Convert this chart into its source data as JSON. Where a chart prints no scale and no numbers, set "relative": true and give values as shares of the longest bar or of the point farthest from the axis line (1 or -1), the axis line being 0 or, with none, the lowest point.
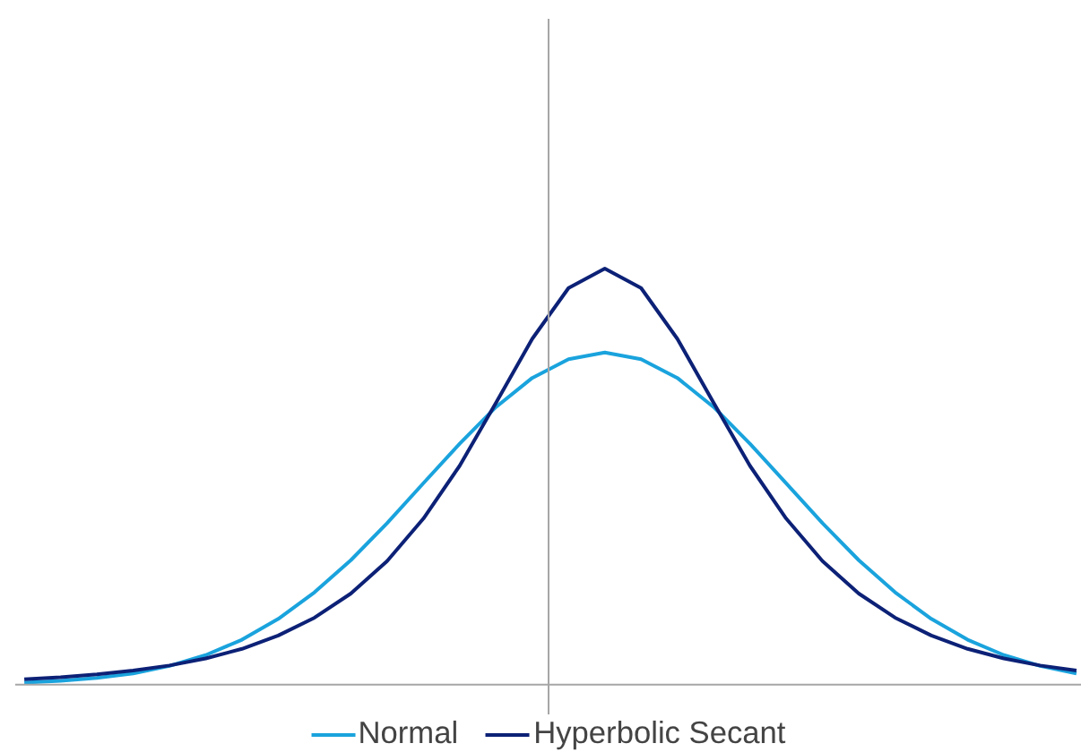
{
  "chart_data": {
    "type": "line",
    "relative": true,
    "grid": false,
    "legend": "bottom",
    "marker": "none",
    "line_style": "solid",
    "categories": [
      null,
      null,
      null,
      null,
      null,
      null,
      null,
      null,
      null,
      null,
      null,
      null,
      null,
      null,
      null,
      null,
      null,
      null,
      null,
      null,
      null,
      null,
      null,
      null,
      null,
      null,
      null,
      null,
      null,
      null
    ],
    "series": [
      {
        "name": "Normal",
        "color": "#1aa3dd",
        "values": [
          0.005,
          0.009,
          0.016,
          0.027,
          0.045,
          0.071,
          0.108,
          0.158,
          0.222,
          0.299,
          0.388,
          0.484,
          0.579,
          0.667,
          0.737,
          0.782,
          0.798,
          0.782,
          0.737,
          0.667,
          0.579,
          0.484,
          0.388,
          0.299,
          0.222,
          0.158,
          0.108,
          0.071,
          0.045,
          0.027
        ]
      },
      {
        "name": "Hyperbolic Secant",
        "color": "#0c2176",
        "values": [
          0.013,
          0.018,
          0.025,
          0.034,
          0.046,
          0.063,
          0.086,
          0.118,
          0.161,
          0.219,
          0.297,
          0.399,
          0.526,
          0.677,
          0.831,
          0.953,
          1,
          0.953,
          0.831,
          0.677,
          0.526,
          0.399,
          0.297,
          0.219,
          0.161,
          0.118,
          0.086,
          0.063,
          0.046,
          0.034
        ]
      }
    ]
  }
}
